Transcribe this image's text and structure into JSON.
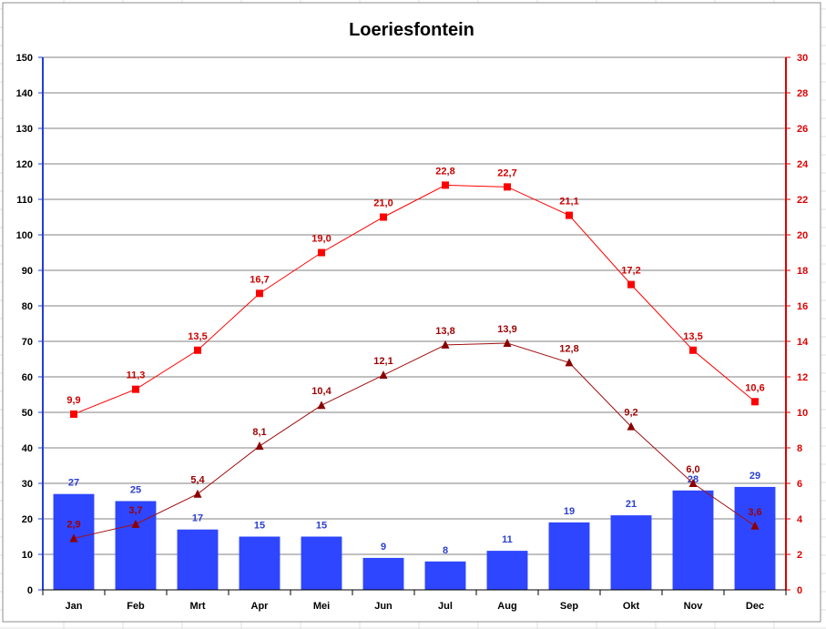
{
  "chart_data": {
    "type": "bar",
    "title": "Loeriesfontein",
    "categories": [
      "Jan",
      "Feb",
      "Mrt",
      "Apr",
      "Mei",
      "Jun",
      "Jul",
      "Aug",
      "Sep",
      "Okt",
      "Nov",
      "Dec"
    ],
    "series": [
      {
        "kind": "bar",
        "axis": "left",
        "values": [
          27,
          25,
          17,
          15,
          15,
          9,
          8,
          11,
          19,
          21,
          28,
          29
        ],
        "labels": [
          "27",
          "25",
          "17",
          "15",
          "15",
          "9",
          "8",
          "11",
          "19",
          "21",
          "28",
          "29"
        ]
      },
      {
        "kind": "line",
        "axis": "right",
        "marker": "square",
        "values": [
          9.9,
          11.3,
          13.5,
          16.7,
          19.0,
          21.0,
          22.8,
          22.7,
          21.1,
          17.2,
          13.5,
          10.6
        ],
        "labels": [
          "9,9",
          "11,3",
          "13,5",
          "16,7",
          "19,0",
          "21,0",
          "22,8",
          "22,7",
          "21,1",
          "17,2",
          "13,5",
          "10,6"
        ]
      },
      {
        "kind": "line",
        "axis": "right",
        "marker": "triangle",
        "values": [
          2.9,
          3.7,
          5.4,
          8.1,
          10.4,
          12.1,
          13.8,
          13.9,
          12.8,
          9.2,
          6.0,
          3.6
        ],
        "labels": [
          "2,9",
          "3,7",
          "5,4",
          "8,1",
          "10,4",
          "12,1",
          "13,8",
          "13,9",
          "12,8",
          "9,2",
          "6,0",
          "3,6"
        ]
      }
    ],
    "y_left": {
      "ylim": [
        0,
        150
      ],
      "ticks": [
        "0",
        "10",
        "20",
        "30",
        "40",
        "50",
        "60",
        "70",
        "80",
        "90",
        "100",
        "110",
        "120",
        "130",
        "140",
        "150"
      ]
    },
    "y_right": {
      "ylim": [
        0,
        30
      ],
      "ticks": [
        "0",
        "2",
        "4",
        "6",
        "8",
        "10",
        "12",
        "14",
        "16",
        "18",
        "20",
        "22",
        "24",
        "26",
        "28",
        "30"
      ]
    },
    "grid": true,
    "legend": "none",
    "colors": {
      "bar": "#2e46ff",
      "bar_label": "#2b3fd1",
      "line_max": "#ff0000",
      "line_max_label": "#cc0000",
      "line_min": "#a01010",
      "line_min_marker": "#8b0000",
      "line_min_label": "#9b0000",
      "left_axis": "#1f3fd6",
      "right_axis": "#e00000",
      "grid": "#808080"
    }
  }
}
